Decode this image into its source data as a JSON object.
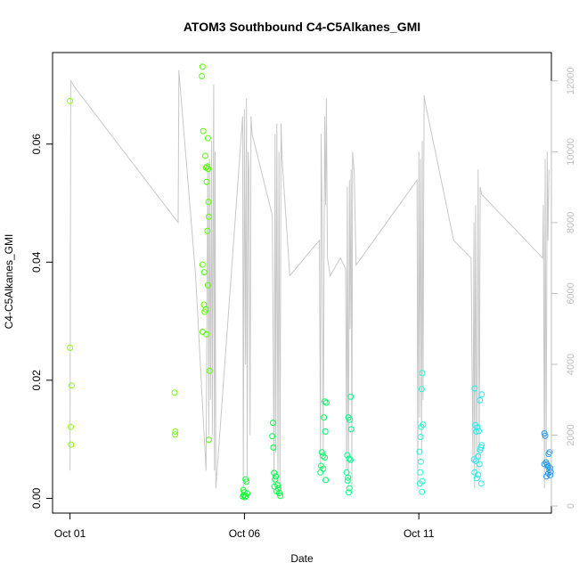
{
  "chart_data": {
    "type": "scatter",
    "title": "ATOM3 Southbound C4-C5Alkanes_GMI",
    "xlabel": "Date",
    "ylabel": "C4-C5Alkanes_GMI",
    "xlim": [
      -0.5,
      13.8
    ],
    "ylim": [
      -0.0025,
      0.0755
    ],
    "y2lim": [
      -200,
      12800
    ],
    "x_ticks": [
      {
        "value": 0,
        "label": "Oct 01"
      },
      {
        "value": 5,
        "label": "Oct 06"
      },
      {
        "value": 10,
        "label": "Oct 11"
      }
    ],
    "y_ticks": [
      {
        "value": 0,
        "label": "0.00"
      },
      {
        "value": 0.02,
        "label": "0.02"
      },
      {
        "value": 0.04,
        "label": "0.04"
      },
      {
        "value": 0.06,
        "label": "0.06"
      }
    ],
    "y2_ticks": [
      {
        "value": 0,
        "label": "0"
      },
      {
        "value": 2000,
        "label": "2000"
      },
      {
        "value": 4000,
        "label": "4000"
      },
      {
        "value": 6000,
        "label": "6000"
      },
      {
        "value": 8000,
        "label": "8000"
      },
      {
        "value": 10000,
        "label": "10000"
      },
      {
        "value": 12000,
        "label": "12000"
      }
    ],
    "altitude_line": [
      [
        0.0,
        1000
      ],
      [
        0.02,
        12000
      ],
      [
        0.15,
        11800
      ],
      [
        3.1,
        8000
      ],
      [
        3.12,
        12300
      ],
      [
        3.6,
        6500
      ],
      [
        3.9,
        1000
      ],
      [
        3.95,
        9700
      ],
      [
        3.98,
        2000
      ],
      [
        4.0,
        9800
      ],
      [
        4.03,
        3000
      ],
      [
        4.06,
        10300
      ],
      [
        4.08,
        2000
      ],
      [
        4.12,
        11900
      ],
      [
        4.14,
        1000
      ],
      [
        4.16,
        10000
      ],
      [
        4.18,
        500
      ],
      [
        4.95,
        11000
      ],
      [
        4.97,
        500
      ],
      [
        5.0,
        11200
      ],
      [
        5.03,
        4000
      ],
      [
        5.06,
        11500
      ],
      [
        5.08,
        800
      ],
      [
        5.11,
        10000
      ],
      [
        5.13,
        9500
      ],
      [
        5.16,
        2000
      ],
      [
        5.19,
        11000
      ],
      [
        5.22,
        10500
      ],
      [
        5.8,
        8200
      ],
      [
        5.85,
        600
      ],
      [
        5.88,
        10500
      ],
      [
        5.9,
        1500
      ],
      [
        5.93,
        10800
      ],
      [
        5.96,
        500
      ],
      [
        5.99,
        10000
      ],
      [
        6.02,
        300
      ],
      [
        6.05,
        10800
      ],
      [
        6.08,
        9800
      ],
      [
        6.3,
        6500
      ],
      [
        7.15,
        7500
      ],
      [
        7.18,
        1000
      ],
      [
        7.2,
        10500
      ],
      [
        7.23,
        8000
      ],
      [
        7.26,
        1500
      ],
      [
        7.3,
        11000
      ],
      [
        7.33,
        8500
      ],
      [
        7.35,
        11500
      ],
      [
        7.38,
        7000
      ],
      [
        7.46,
        6500
      ],
      [
        7.75,
        7000
      ],
      [
        7.9,
        6700
      ],
      [
        7.93,
        1000
      ],
      [
        7.95,
        9000
      ],
      [
        7.98,
        500
      ],
      [
        8.01,
        9200
      ],
      [
        8.03,
        5000
      ],
      [
        8.06,
        9500
      ],
      [
        8.08,
        500
      ],
      [
        8.1,
        10000
      ],
      [
        8.15,
        9400
      ],
      [
        8.2,
        6800
      ],
      [
        9.95,
        9200
      ],
      [
        9.97,
        500
      ],
      [
        10.0,
        10000
      ],
      [
        10.02,
        2500
      ],
      [
        10.05,
        9800
      ],
      [
        10.08,
        1500
      ],
      [
        10.1,
        10300
      ],
      [
        10.12,
        3000
      ],
      [
        10.15,
        11600
      ],
      [
        10.18,
        11400
      ],
      [
        11.0,
        7500
      ],
      [
        11.5,
        7000
      ],
      [
        11.55,
        1200
      ],
      [
        11.58,
        8000
      ],
      [
        11.6,
        500
      ],
      [
        11.63,
        8500
      ],
      [
        11.66,
        900
      ],
      [
        11.7,
        9500
      ],
      [
        11.73,
        1000
      ],
      [
        11.76,
        9000
      ],
      [
        11.8,
        8800
      ],
      [
        13.55,
        7000
      ],
      [
        13.57,
        8500
      ],
      [
        13.6,
        500
      ],
      [
        13.62,
        9800
      ],
      [
        13.65,
        1200
      ],
      [
        13.68,
        10000
      ],
      [
        13.7,
        7500
      ],
      [
        13.73,
        9500
      ]
    ],
    "points": [
      {
        "x": 0.0,
        "y": 0.0673,
        "color": "#88ff00"
      },
      {
        "x": 0.0,
        "y": 0.0255,
        "color": "#88ff00"
      },
      {
        "x": 0.05,
        "y": 0.0191,
        "color": "#88ff00"
      },
      {
        "x": 0.02,
        "y": 0.0121,
        "color": "#88ff00"
      },
      {
        "x": 0.03,
        "y": 0.0091,
        "color": "#88ff00"
      },
      {
        "x": 3.0,
        "y": 0.0179,
        "color": "#77ff00"
      },
      {
        "x": 3.02,
        "y": 0.0113,
        "color": "#77ff00"
      },
      {
        "x": 3.01,
        "y": 0.0108,
        "color": "#77ff00"
      },
      {
        "x": 3.8,
        "y": 0.0731,
        "color": "#55ff00"
      },
      {
        "x": 3.78,
        "y": 0.0715,
        "color": "#55ff00"
      },
      {
        "x": 3.82,
        "y": 0.0622,
        "color": "#55ff00"
      },
      {
        "x": 3.95,
        "y": 0.061,
        "color": "#55ff00"
      },
      {
        "x": 3.88,
        "y": 0.058,
        "color": "#55ff00"
      },
      {
        "x": 3.93,
        "y": 0.0562,
        "color": "#55ff00"
      },
      {
        "x": 3.9,
        "y": 0.056,
        "color": "#55ff00"
      },
      {
        "x": 3.96,
        "y": 0.0558,
        "color": "#55ff00"
      },
      {
        "x": 3.92,
        "y": 0.0536,
        "color": "#55ff00"
      },
      {
        "x": 3.97,
        "y": 0.0502,
        "color": "#55ff00"
      },
      {
        "x": 3.98,
        "y": 0.0477,
        "color": "#55ff00"
      },
      {
        "x": 3.94,
        "y": 0.0453,
        "color": "#55ff00"
      },
      {
        "x": 3.8,
        "y": 0.0396,
        "color": "#55ff00"
      },
      {
        "x": 3.85,
        "y": 0.0383,
        "color": "#55ff00"
      },
      {
        "x": 3.95,
        "y": 0.0361,
        "color": "#55ff00"
      },
      {
        "x": 3.84,
        "y": 0.0328,
        "color": "#55ff00"
      },
      {
        "x": 3.89,
        "y": 0.032,
        "color": "#55ff00"
      },
      {
        "x": 3.86,
        "y": 0.0316,
        "color": "#55ff00"
      },
      {
        "x": 3.8,
        "y": 0.0282,
        "color": "#55ff00"
      },
      {
        "x": 3.91,
        "y": 0.0278,
        "color": "#55ff00"
      },
      {
        "x": 4.0,
        "y": 0.0216,
        "color": "#55ff00"
      },
      {
        "x": 3.98,
        "y": 0.0099,
        "color": "#55ff00"
      },
      {
        "x": 5.03,
        "y": 0.0032,
        "color": "#11ff33"
      },
      {
        "x": 5.06,
        "y": 0.0028,
        "color": "#11ff33"
      },
      {
        "x": 4.97,
        "y": 0.0014,
        "color": "#11ff33"
      },
      {
        "x": 5.0,
        "y": 0.001,
        "color": "#11ff33"
      },
      {
        "x": 4.98,
        "y": 0.0006,
        "color": "#11ff33"
      },
      {
        "x": 5.04,
        "y": 0.0004,
        "color": "#11ff33"
      },
      {
        "x": 4.96,
        "y": 0.0003,
        "color": "#11ff33"
      },
      {
        "x": 5.08,
        "y": 0.0008,
        "color": "#11ff33"
      },
      {
        "x": 5.02,
        "y": 0.0002,
        "color": "#11ff33"
      },
      {
        "x": 5.82,
        "y": 0.0128,
        "color": "#00ff44"
      },
      {
        "x": 5.8,
        "y": 0.0105,
        "color": "#00ff44"
      },
      {
        "x": 5.83,
        "y": 0.0086,
        "color": "#00ff44"
      },
      {
        "x": 5.85,
        "y": 0.0043,
        "color": "#00ff44"
      },
      {
        "x": 5.9,
        "y": 0.0037,
        "color": "#00ff44"
      },
      {
        "x": 5.88,
        "y": 0.0032,
        "color": "#00ff44"
      },
      {
        "x": 5.95,
        "y": 0.0022,
        "color": "#00ff44"
      },
      {
        "x": 5.97,
        "y": 0.0016,
        "color": "#00ff44"
      },
      {
        "x": 6.0,
        "y": 0.0009,
        "color": "#00ff44"
      },
      {
        "x": 6.03,
        "y": 0.0004,
        "color": "#00ff44"
      },
      {
        "x": 5.92,
        "y": 0.0012,
        "color": "#00ff44"
      },
      {
        "x": 5.86,
        "y": 0.002,
        "color": "#00ff44"
      },
      {
        "x": 7.3,
        "y": 0.0164,
        "color": "#00ff66"
      },
      {
        "x": 7.35,
        "y": 0.0162,
        "color": "#00ff66"
      },
      {
        "x": 7.28,
        "y": 0.0137,
        "color": "#00ff66"
      },
      {
        "x": 7.32,
        "y": 0.0113,
        "color": "#00ff66"
      },
      {
        "x": 7.22,
        "y": 0.0078,
        "color": "#00ff66"
      },
      {
        "x": 7.25,
        "y": 0.0072,
        "color": "#00ff66"
      },
      {
        "x": 7.3,
        "y": 0.0069,
        "color": "#00ff66"
      },
      {
        "x": 7.2,
        "y": 0.0055,
        "color": "#00ff66"
      },
      {
        "x": 7.26,
        "y": 0.005,
        "color": "#00ff66"
      },
      {
        "x": 7.18,
        "y": 0.0044,
        "color": "#00ff66"
      },
      {
        "x": 7.33,
        "y": 0.0031,
        "color": "#00ff66"
      },
      {
        "x": 8.05,
        "y": 0.0172,
        "color": "#00ff88"
      },
      {
        "x": 7.98,
        "y": 0.0137,
        "color": "#00ff88"
      },
      {
        "x": 8.02,
        "y": 0.0133,
        "color": "#00ff88"
      },
      {
        "x": 8.06,
        "y": 0.0117,
        "color": "#00ff88"
      },
      {
        "x": 7.95,
        "y": 0.0073,
        "color": "#00ff88"
      },
      {
        "x": 8.0,
        "y": 0.0067,
        "color": "#00ff88"
      },
      {
        "x": 8.04,
        "y": 0.0065,
        "color": "#00ff88"
      },
      {
        "x": 7.93,
        "y": 0.0044,
        "color": "#00ff88"
      },
      {
        "x": 7.97,
        "y": 0.0035,
        "color": "#00ff88"
      },
      {
        "x": 7.96,
        "y": 0.003,
        "color": "#00ff88"
      },
      {
        "x": 8.01,
        "y": 0.0017,
        "color": "#00ff88"
      },
      {
        "x": 7.99,
        "y": 0.001,
        "color": "#00ff88"
      },
      {
        "x": 10.1,
        "y": 0.0212,
        "color": "#22ffcc"
      },
      {
        "x": 10.08,
        "y": 0.0185,
        "color": "#22ffcc"
      },
      {
        "x": 10.12,
        "y": 0.0125,
        "color": "#22ffcc"
      },
      {
        "x": 10.07,
        "y": 0.0121,
        "color": "#22ffcc"
      },
      {
        "x": 10.05,
        "y": 0.0104,
        "color": "#22ffcc"
      },
      {
        "x": 10.02,
        "y": 0.0079,
        "color": "#22ffcc"
      },
      {
        "x": 10.06,
        "y": 0.0062,
        "color": "#22ffcc"
      },
      {
        "x": 10.04,
        "y": 0.0044,
        "color": "#22ffcc"
      },
      {
        "x": 10.1,
        "y": 0.0029,
        "color": "#22ffcc"
      },
      {
        "x": 10.03,
        "y": 0.0025,
        "color": "#22ffcc"
      },
      {
        "x": 10.09,
        "y": 0.0011,
        "color": "#22ffcc"
      },
      {
        "x": 11.6,
        "y": 0.0186,
        "color": "#22eeee"
      },
      {
        "x": 11.8,
        "y": 0.0176,
        "color": "#22eeee"
      },
      {
        "x": 11.75,
        "y": 0.0166,
        "color": "#22eeee"
      },
      {
        "x": 11.62,
        "y": 0.0124,
        "color": "#22eeee"
      },
      {
        "x": 11.68,
        "y": 0.012,
        "color": "#22eeee"
      },
      {
        "x": 11.72,
        "y": 0.0114,
        "color": "#22eeee"
      },
      {
        "x": 11.65,
        "y": 0.0113,
        "color": "#22eeee"
      },
      {
        "x": 11.8,
        "y": 0.009,
        "color": "#22eeee"
      },
      {
        "x": 11.78,
        "y": 0.0086,
        "color": "#22eeee"
      },
      {
        "x": 11.76,
        "y": 0.0082,
        "color": "#22eeee"
      },
      {
        "x": 11.7,
        "y": 0.0071,
        "color": "#22eeee"
      },
      {
        "x": 11.58,
        "y": 0.0066,
        "color": "#22eeee"
      },
      {
        "x": 11.64,
        "y": 0.0063,
        "color": "#22eeee"
      },
      {
        "x": 11.74,
        "y": 0.0058,
        "color": "#22eeee"
      },
      {
        "x": 11.6,
        "y": 0.0044,
        "color": "#22eeee"
      },
      {
        "x": 11.7,
        "y": 0.004,
        "color": "#22eeee"
      },
      {
        "x": 11.66,
        "y": 0.0034,
        "color": "#22eeee"
      },
      {
        "x": 11.79,
        "y": 0.0025,
        "color": "#22eeee"
      },
      {
        "x": 13.6,
        "y": 0.011,
        "color": "#2299ee"
      },
      {
        "x": 13.62,
        "y": 0.0106,
        "color": "#2299ee"
      },
      {
        "x": 13.75,
        "y": 0.0078,
        "color": "#2299ee"
      },
      {
        "x": 13.72,
        "y": 0.0075,
        "color": "#2299ee"
      },
      {
        "x": 13.65,
        "y": 0.0061,
        "color": "#2299ee"
      },
      {
        "x": 13.6,
        "y": 0.0058,
        "color": "#2299ee"
      },
      {
        "x": 13.68,
        "y": 0.0057,
        "color": "#2299ee"
      },
      {
        "x": 13.7,
        "y": 0.0054,
        "color": "#2299ee"
      },
      {
        "x": 13.76,
        "y": 0.0052,
        "color": "#2299ee"
      },
      {
        "x": 13.74,
        "y": 0.0048,
        "color": "#2299ee"
      },
      {
        "x": 13.78,
        "y": 0.0045,
        "color": "#2299ee"
      },
      {
        "x": 13.71,
        "y": 0.0042,
        "color": "#2299ee"
      },
      {
        "x": 13.77,
        "y": 0.0039,
        "color": "#2299ee"
      },
      {
        "x": 13.66,
        "y": 0.0037,
        "color": "#2299ee"
      }
    ],
    "colors": {
      "axis": "#000000",
      "line": "#c8c8c8",
      "y2_axis": "#bebebe"
    },
    "grid": false,
    "legend": "none"
  }
}
